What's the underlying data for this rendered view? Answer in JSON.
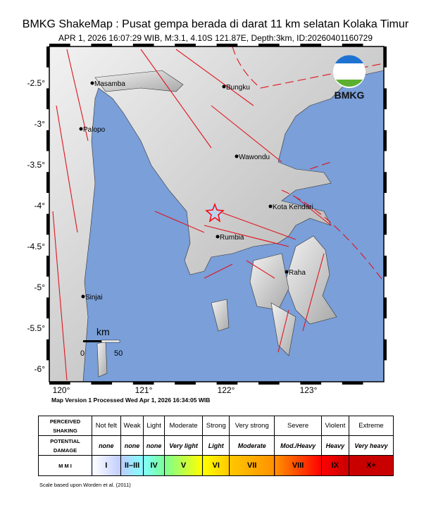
{
  "header": {
    "title": "BMKG ShakeMap : Pusat gempa berada di darat 11 km selatan Kolaka Timur",
    "subtitle": "APR 1, 2026 16:07:29 WIB, M:3.1, 4.10S 121.87E, Depth:3km, ID:20260401160729"
  },
  "map": {
    "lat_ticks": [
      "-2.5°",
      "-3°",
      "-3.5°",
      "-4°",
      "-4.5°",
      "-5°",
      "-5.5°",
      "-6°"
    ],
    "lon_ticks": [
      "120°",
      "121°",
      "122°",
      "123°"
    ],
    "cities": [
      "Masamba",
      "Bungku",
      "Palopo",
      "Wawondu",
      "Kota Kendari",
      "Rumbia",
      "Raha",
      "Sinjai"
    ],
    "epicenter": {
      "lat": -4.1,
      "lon": 121.87,
      "icon": "star-icon"
    },
    "scale": {
      "unit": "km",
      "min": "0",
      "max": "50"
    },
    "logo": "BMKG",
    "colors": {
      "sea": "#7a9fd9",
      "land": "#cfcfcf",
      "fault": "#e0141e",
      "epicenter": "#ff0000"
    }
  },
  "version_text": "Map Version 1 Processed Wed Apr  1, 2026 16:34:05 WIB",
  "legend": {
    "row_labels": [
      "PERCEIVED SHAKING",
      "POTENTIAL DAMAGE",
      "M M I"
    ],
    "shaking": [
      "Not felt",
      "Weak",
      "Light",
      "Moderate",
      "Strong",
      "Very strong",
      "Severe",
      "Violent",
      "Extreme"
    ],
    "damage": [
      "none",
      "none",
      "none",
      "Very light",
      "Light",
      "Moderate",
      "Mod./Heavy",
      "Heavy",
      "Very heavy"
    ],
    "mmi": [
      "I",
      "II–III",
      "IV",
      "V",
      "VI",
      "VII",
      "VIII",
      "IX",
      "X+"
    ],
    "mmi_colors": [
      "#ffffff",
      "#bfccff",
      "#80ffff",
      "#7aff93",
      "#ffff00",
      "#ffc800",
      "#ff9100",
      "#ff0000",
      "#c80000"
    ],
    "source": "Scale based upon Worden et al. (2011)"
  }
}
